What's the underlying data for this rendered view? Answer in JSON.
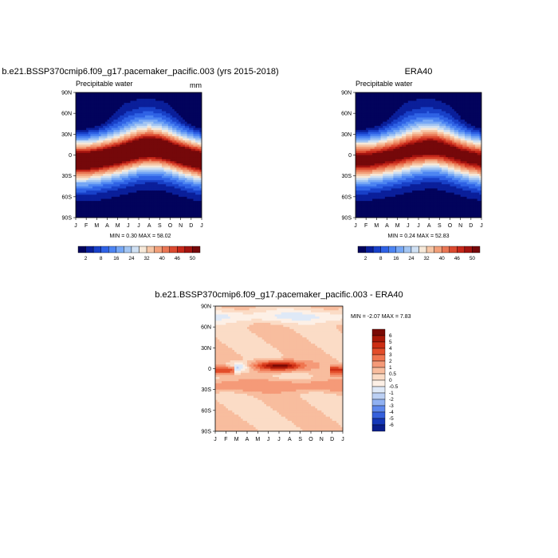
{
  "chart_data": [
    {
      "type": "heatmap",
      "title": "b.e21.BSSP370cmip6.f09_g17.pacemaker_pacific.003 (yrs 2015-2018)",
      "subtitle_left": "Precipitable water",
      "subtitle_right": "mm",
      "x_tick_labels": [
        "J",
        "F",
        "M",
        "A",
        "M",
        "J",
        "J",
        "A",
        "S",
        "O",
        "N",
        "D",
        "J"
      ],
      "y_tick_labels": [
        "90N",
        "60N",
        "30N",
        "0",
        "30S",
        "60S",
        "90S"
      ],
      "y_range": [
        -90,
        90
      ],
      "min": "0.30",
      "max": "58.02",
      "minmax_text": "MIN =   0.30 MAX =  58.02",
      "colorbar_levels": [
        "2",
        "8",
        "16",
        "24",
        "32",
        "40",
        "46",
        "50"
      ],
      "colorbar_colors": [
        "#02035c",
        "#0a1f9a",
        "#1840c8",
        "#2f62e5",
        "#4d85f2",
        "#76a7f5",
        "#a3c5f2",
        "#cfe0f3",
        "#f6e8d8",
        "#f6c6a6",
        "#f2a07a",
        "#e97755",
        "#db4a30",
        "#c6281a",
        "#a3130f",
        "#75080a"
      ],
      "peak_lat_by_month": [
        -8,
        -8,
        -6,
        -3,
        0,
        4,
        8,
        10,
        9,
        5,
        0,
        -4,
        -8
      ]
    },
    {
      "type": "heatmap",
      "title": "ERA40",
      "subtitle_left": "Precipitable water",
      "x_tick_labels": [
        "J",
        "F",
        "M",
        "A",
        "M",
        "J",
        "J",
        "A",
        "S",
        "O",
        "N",
        "D",
        "J"
      ],
      "y_tick_labels": [
        "90N",
        "60N",
        "30N",
        "0",
        "30S",
        "60S",
        "90S"
      ],
      "y_range": [
        -90,
        90
      ],
      "min": "0.24",
      "max": "52.83",
      "minmax_text": "MIN =   0.24 MAX =  52.83",
      "colorbar_levels": [
        "2",
        "8",
        "16",
        "24",
        "32",
        "40",
        "46",
        "50"
      ],
      "colorbar_colors": [
        "#02035c",
        "#0a1f9a",
        "#1840c8",
        "#2f62e5",
        "#4d85f2",
        "#76a7f5",
        "#a3c5f2",
        "#cfe0f3",
        "#f6e8d8",
        "#f6c6a6",
        "#f2a07a",
        "#e97755",
        "#db4a30",
        "#c6281a",
        "#a3130f",
        "#75080a"
      ],
      "peak_lat_by_month": [
        -7,
        -7,
        -5,
        -2,
        1,
        5,
        8,
        10,
        9,
        5,
        0,
        -4,
        -7
      ]
    },
    {
      "type": "heatmap",
      "title": "b.e21.BSSP370cmip6.f09_g17.pacemaker_pacific.003 - ERA40",
      "x_tick_labels": [
        "J",
        "F",
        "M",
        "A",
        "M",
        "J",
        "J",
        "A",
        "S",
        "O",
        "N",
        "D",
        "J"
      ],
      "y_tick_labels": [
        "90N",
        "60N",
        "30N",
        "0",
        "30S",
        "60S",
        "90S"
      ],
      "y_range": [
        -90,
        90
      ],
      "min": "-2.07",
      "max": "7.83",
      "minmax_text": "MIN =  -2.07 MAX =   7.83",
      "colorbar_levels": [
        "6",
        "5",
        "4",
        "3",
        "2",
        "1",
        "0.5",
        "0",
        "-0.5",
        "-1",
        "-2",
        "-3",
        "-4",
        "-5",
        "-6"
      ],
      "colorbar_colors": [
        "#7a0a05",
        "#a81808",
        "#cc2e14",
        "#e24d2a",
        "#ef7550",
        "#f59a78",
        "#f8bd9e",
        "#fbdcc6",
        "#fdf0e6",
        "#dfe9f7",
        "#bcd0f4",
        "#90b1f2",
        "#5e88ec",
        "#3560dc",
        "#1538b8",
        "#0a1e8c"
      ]
    }
  ]
}
